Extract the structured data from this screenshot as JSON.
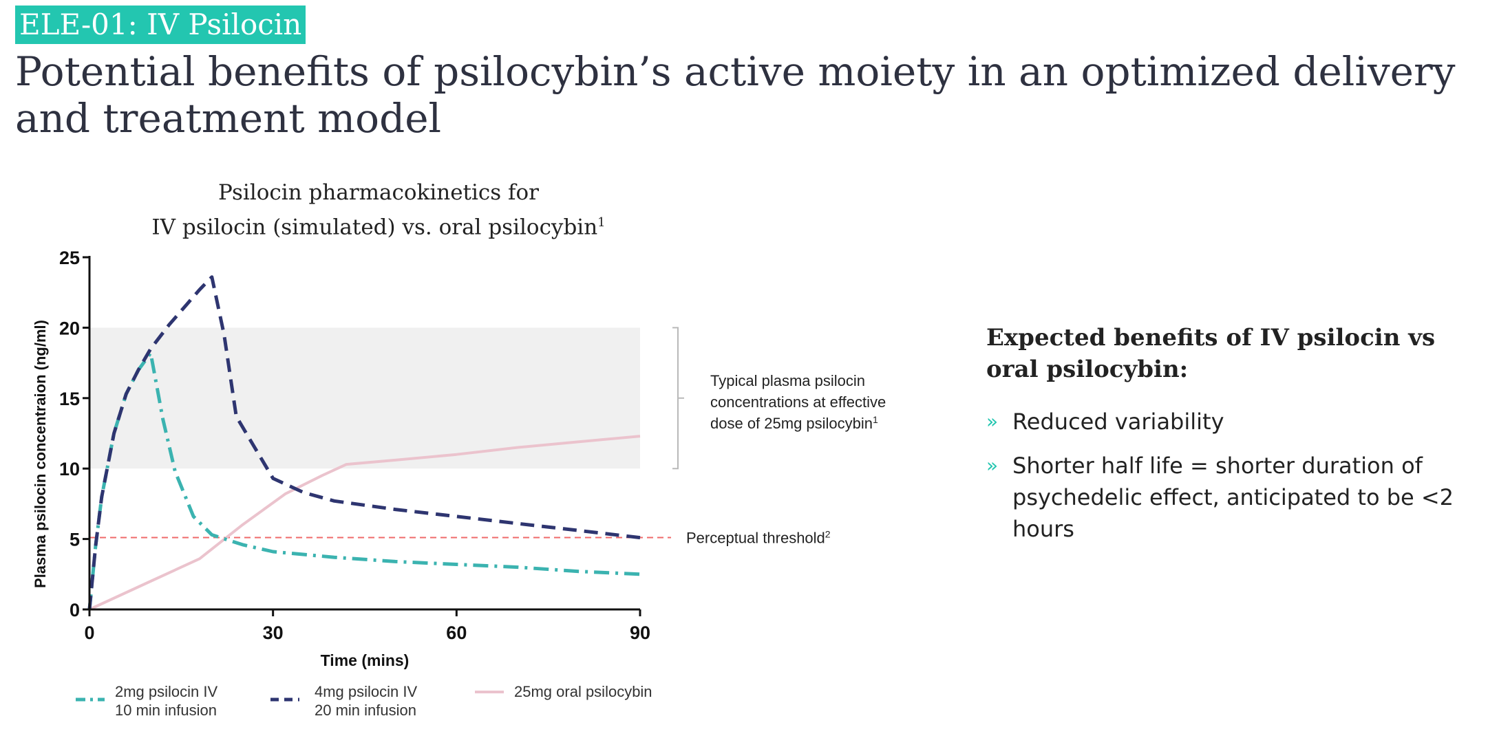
{
  "slide": {
    "tag": "ELE-01: IV Psilocin",
    "headline": "Potential benefits of psilocybin’s active moiety in an optimized delivery and treatment model"
  },
  "chart_title": {
    "line1": "Psilocin pharmacokinetics for",
    "line2": "IV psilocin (simulated) vs. oral psilocybin",
    "line2_sup": "1"
  },
  "chart_data": {
    "type": "line",
    "title": "Psilocin pharmacokinetics for IV psilocin (simulated) vs. oral psilocybin",
    "xlabel": "Time (mins)",
    "ylabel": "Plasma psilocin concentraion (ng/ml)",
    "xlim": [
      0,
      90
    ],
    "ylim": [
      0,
      25
    ],
    "x_ticks": [
      0,
      30,
      60,
      90
    ],
    "y_ticks": [
      0,
      5,
      10,
      15,
      20,
      25
    ],
    "grid": false,
    "legend_position": "bottom",
    "series": [
      {
        "name": "2mg psilocin IV 10 min infusion",
        "legend_line1": "2mg psilocin IV",
        "legend_line2": "10 min infusion",
        "color": "#3bb3b0",
        "dash": "dash-dot",
        "x": [
          0,
          1,
          2,
          4,
          6,
          8,
          10,
          12,
          14,
          17,
          20,
          25,
          30,
          40,
          50,
          60,
          70,
          80,
          90
        ],
        "y": [
          0,
          4.5,
          8,
          12.5,
          15.3,
          17,
          18.2,
          13.5,
          9.8,
          6.6,
          5.3,
          4.6,
          4.1,
          3.7,
          3.4,
          3.2,
          3.0,
          2.7,
          2.5
        ]
      },
      {
        "name": "4mg psilocin IV 20 min infusion",
        "legend_line1": "4mg psilocin IV",
        "legend_line2": "20 min infusion",
        "color": "#2e3570",
        "dash": "dashed",
        "x": [
          0,
          1,
          2,
          4,
          6,
          8,
          10,
          13,
          16,
          18,
          20,
          22,
          24,
          27,
          30,
          35,
          40,
          50,
          60,
          70,
          80,
          90
        ],
        "y": [
          0,
          4.5,
          8,
          12.5,
          15.3,
          17,
          18.5,
          20.2,
          21.7,
          22.7,
          23.6,
          19.5,
          13.7,
          11.5,
          9.3,
          8.3,
          7.7,
          7.1,
          6.6,
          6.1,
          5.6,
          5.1
        ]
      },
      {
        "name": "25mg oral psilocybin",
        "legend_line1": "25mg oral psilocybin",
        "legend_line2": "",
        "color": "#ebc3cd",
        "dash": "solid",
        "x": [
          0,
          10,
          18,
          25,
          32,
          38,
          42,
          50,
          60,
          70,
          80,
          90
        ],
        "y": [
          0,
          2,
          3.6,
          6,
          8.2,
          9.5,
          10.3,
          10.6,
          11.0,
          11.5,
          11.9,
          12.3
        ]
      }
    ],
    "shaded_band": {
      "y_range": [
        10,
        20
      ],
      "x_range": [
        0,
        90
      ],
      "label_lines": [
        "Typical plasma psilocin",
        "concentrations at effective",
        "dose of 25mg psilocybin"
      ],
      "label_sup": "1",
      "color": "#f0f0f0"
    },
    "threshold": {
      "y": 5.1,
      "label": "Perceptual threshold",
      "label_sup": "2",
      "color": "#ef6a6a"
    }
  },
  "benefits": {
    "heading": "Expected benefits of IV psilocin vs oral psilocybin:",
    "bullet_glyph": "»",
    "items": [
      "Reduced variability",
      "Shorter half life = shorter duration of psychedelic effect, anticipated to be <2 hours"
    ]
  }
}
